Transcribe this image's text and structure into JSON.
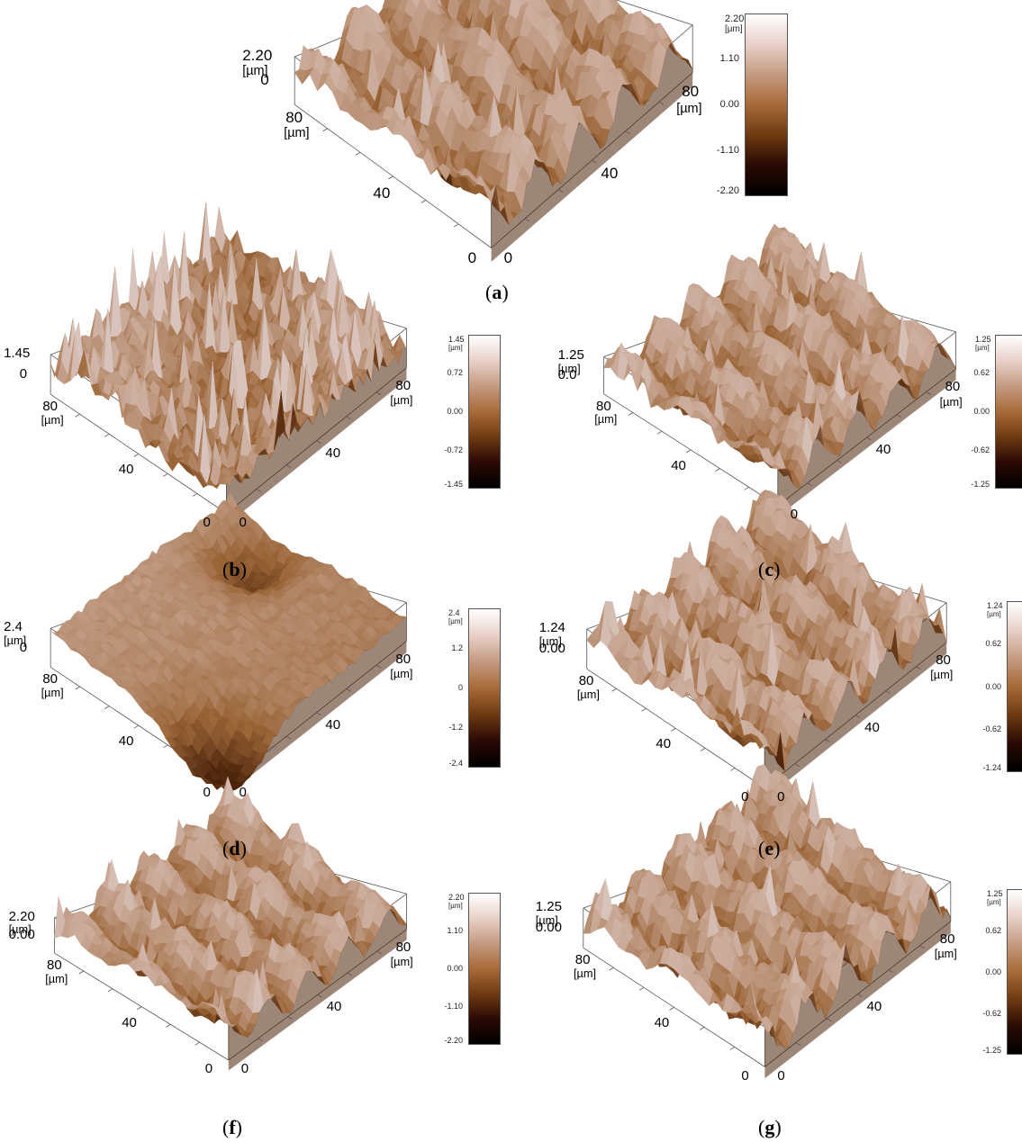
{
  "panels": [
    {
      "id": "a",
      "caption": "a",
      "z_max_label": "2.20",
      "z_unit": "[µm]",
      "z_zero_label": "0",
      "axis_labels": {
        "left_80": "80",
        "left_unit": "[µm]",
        "left_40": "40",
        "left_0": "0",
        "right_0": "0",
        "right_40": "40",
        "right_80": "80",
        "right_unit": "[µm]"
      },
      "colorbar": {
        "top": "2.20",
        "unit": "[µm]",
        "ticks": [
          "1.10",
          "0.00",
          "-1.10"
        ],
        "bottom": "-2.20"
      }
    },
    {
      "id": "b",
      "caption": "b",
      "z_max_label": "1.45",
      "z_unit": "",
      "z_zero_label": "0",
      "axis_labels": {
        "left_80": "80",
        "left_unit": "[µm]",
        "left_40": "40",
        "left_0": "0",
        "right_0": "0",
        "right_40": "40",
        "right_80": "80",
        "right_unit": "[µm]"
      },
      "colorbar": {
        "top": "1.45",
        "unit": "[µm]",
        "ticks": [
          "0.72",
          "0.00",
          "-0.72"
        ],
        "bottom": "-1.45"
      }
    },
    {
      "id": "c",
      "caption": "c",
      "z_max_label": "1.25",
      "z_unit": "[µm]",
      "z_zero_label": "0.0",
      "axis_labels": {
        "left_80": "80",
        "left_unit": "[µm]",
        "left_40": "40",
        "left_0": "",
        "right_0": "0",
        "right_40": "40",
        "right_80": "80",
        "right_unit": "[µm]"
      },
      "colorbar": {
        "top": "1.25",
        "unit": "[µm]",
        "ticks": [
          "0.62",
          "0.00",
          "-0.62"
        ],
        "bottom": "-1.25"
      }
    },
    {
      "id": "d",
      "caption": "d",
      "z_max_label": "2.4",
      "z_unit": "[µm]",
      "z_zero_label": "0",
      "axis_labels": {
        "left_80": "80",
        "left_unit": "[µm]",
        "left_40": "40",
        "left_0": "0",
        "right_0": "0",
        "right_40": "40",
        "right_80": "80",
        "right_unit": "[µm]"
      },
      "colorbar": {
        "top": "2.4",
        "unit": "[µm]",
        "ticks": [
          "1.2",
          "0",
          "-1.2"
        ],
        "bottom": "-2.4"
      }
    },
    {
      "id": "e",
      "caption": "e",
      "z_max_label": "1.24",
      "z_unit": "[µm]",
      "z_zero_label": "0.00",
      "axis_labels": {
        "left_80": "80",
        "left_unit": "[µm]",
        "left_40": "40",
        "left_0": "0",
        "right_0": "0",
        "right_40": "40",
        "right_80": "80",
        "right_unit": "[µm]"
      },
      "colorbar": {
        "top": "1.24",
        "unit": "[µm]",
        "ticks": [
          "0.62",
          "0.00",
          "-0.62"
        ],
        "bottom": "-1.24"
      }
    },
    {
      "id": "f",
      "caption": "f",
      "z_max_label": "2.20",
      "z_unit": "[µm]",
      "z_zero_label": "0.00",
      "axis_labels": {
        "left_80": "80",
        "left_unit": "[µm]",
        "left_40": "40",
        "left_0": "0",
        "right_0": "0",
        "right_40": "40",
        "right_80": "80",
        "right_unit": "[µm]"
      },
      "colorbar": {
        "top": "2.20",
        "unit": "[µm]",
        "ticks": [
          "1.10",
          "0.00",
          "-1.10"
        ],
        "bottom": "-2.20"
      }
    },
    {
      "id": "g",
      "caption": "g",
      "z_max_label": "1.25",
      "z_unit": "[µm]",
      "z_zero_label": "0.00",
      "axis_labels": {
        "left_80": "80",
        "left_unit": "[µm]",
        "left_40": "40",
        "left_0": "0",
        "right_0": "0",
        "right_40": "40",
        "right_80": "80",
        "right_unit": "[µm]"
      },
      "colorbar": {
        "top": "1.25",
        "unit": "[µm]",
        "ticks": [
          "0.62",
          "0.00",
          "-0.62"
        ],
        "bottom": "-1.25"
      }
    }
  ],
  "colors": {
    "colormap": [
      "#ffffff",
      "#e8d0c8",
      "#c49a80",
      "#a86a38",
      "#6e3a12",
      "#2a0a04",
      "#000000"
    ],
    "surface_light": "#c9a896",
    "surface_mid": "#9a6436",
    "surface_dark": "#4a220a",
    "box_line": "#555555"
  }
}
